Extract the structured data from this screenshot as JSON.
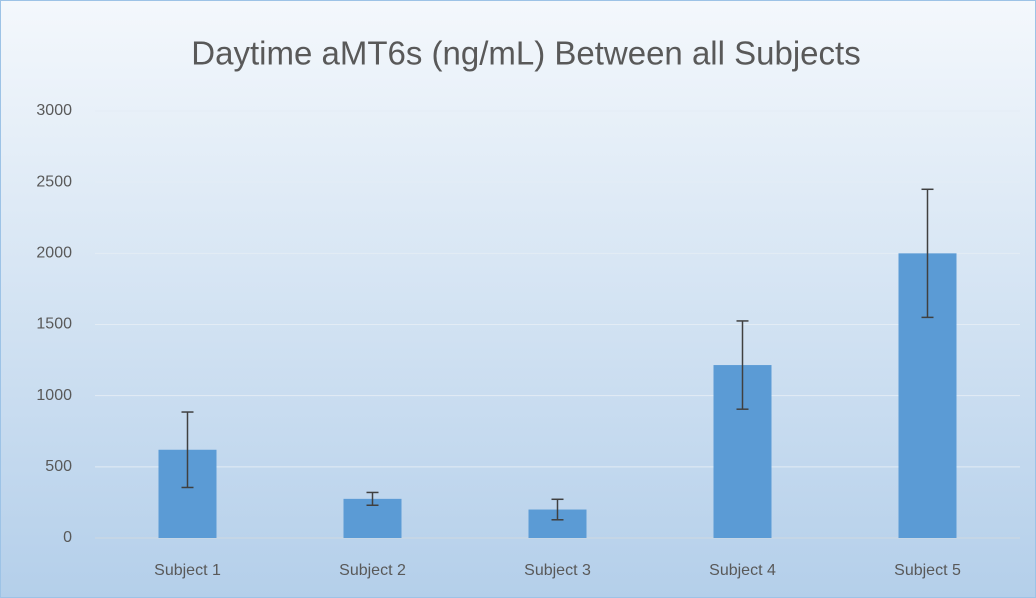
{
  "chart_data": {
    "type": "bar",
    "title": "Daytime aMT6s (ng/mL) Between all Subjects",
    "categories": [
      "Subject 1",
      "Subject 2",
      "Subject 3",
      "Subject 4",
      "Subject 5"
    ],
    "values": [
      620,
      275,
      200,
      1215,
      2000
    ],
    "errors": [
      265,
      45,
      72,
      310,
      450
    ],
    "color": "#5b9bd5",
    "error_color": "#404040",
    "ylim": [
      0,
      3000
    ],
    "yticks": [
      0,
      500,
      1000,
      1500,
      2000,
      2500,
      3000
    ],
    "grid": true
  }
}
